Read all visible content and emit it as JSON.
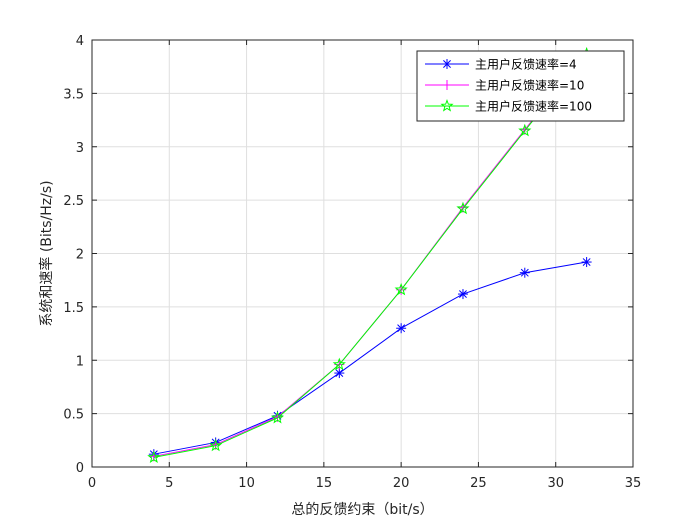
{
  "chart_data": {
    "type": "line",
    "xlabel": "总的反馈约束（bit/s）",
    "ylabel": "系统和速率 (Bits/Hz/s)",
    "xlim": [
      0,
      35
    ],
    "ylim": [
      0,
      4
    ],
    "x_ticks": [
      0,
      5,
      10,
      15,
      20,
      25,
      30,
      35
    ],
    "y_ticks": [
      0,
      0.5,
      1,
      1.5,
      2,
      2.5,
      3,
      3.5,
      4
    ],
    "grid": true,
    "legend_position": "top-right",
    "series": [
      {
        "name": "主用户反馈速率=4",
        "color": "#0000ff",
        "marker": "asterisk",
        "x": [
          4,
          8,
          12,
          16,
          20,
          24,
          28,
          32
        ],
        "y": [
          0.12,
          0.23,
          0.48,
          0.88,
          1.3,
          1.62,
          1.82,
          1.92
        ]
      },
      {
        "name": "主用户反馈速率=10",
        "color": "#ff00ff",
        "marker": "plus",
        "x": [
          4,
          8,
          12,
          16,
          20,
          24,
          28,
          32
        ],
        "y": [
          0.1,
          0.21,
          0.47,
          0.96,
          1.66,
          2.43,
          3.16,
          3.88
        ]
      },
      {
        "name": "主用户反馈速率=100",
        "color": "#00ff00",
        "marker": "star",
        "x": [
          4,
          8,
          12,
          16,
          20,
          24,
          28,
          32
        ],
        "y": [
          0.09,
          0.2,
          0.46,
          0.96,
          1.66,
          2.42,
          3.15,
          3.87
        ]
      }
    ]
  }
}
